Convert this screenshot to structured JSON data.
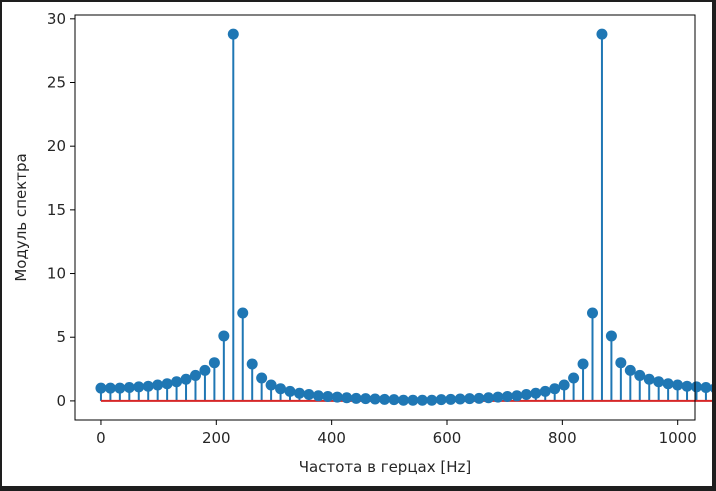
{
  "chart_data": {
    "type": "stem",
    "xlabel": "Частота в герцах [Hz]",
    "ylabel": "Модуль спектра",
    "xlim": [
      -45,
      1030
    ],
    "ylim": [
      -1.5,
      30.3
    ],
    "x_ticks": [
      "0",
      "200",
      "400",
      "600",
      "800",
      "1000"
    ],
    "y_ticks": [
      "0",
      "5",
      "10",
      "15",
      "20",
      "25",
      "30"
    ],
    "x_tick_values": [
      0,
      200,
      400,
      600,
      800,
      1000
    ],
    "y_tick_values": [
      0,
      5,
      10,
      15,
      20,
      25,
      30
    ],
    "grid": false,
    "baseline": 0,
    "x_step": 16.39,
    "values": [
      1.0,
      1.0,
      1.0,
      1.05,
      1.1,
      1.15,
      1.25,
      1.35,
      1.5,
      1.7,
      2.0,
      2.4,
      3.0,
      5.1,
      28.8,
      6.9,
      2.9,
      1.8,
      1.25,
      0.95,
      0.75,
      0.6,
      0.5,
      0.4,
      0.35,
      0.3,
      0.25,
      0.2,
      0.18,
      0.15,
      0.12,
      0.1,
      0.05,
      0.05,
      0.05,
      0.05,
      0.1,
      0.12,
      0.15,
      0.18,
      0.2,
      0.25,
      0.3,
      0.35,
      0.4,
      0.5,
      0.6,
      0.75,
      0.95,
      1.25,
      1.8,
      2.9,
      6.9,
      28.8,
      5.1,
      3.0,
      2.4,
      2.0,
      1.7,
      1.5,
      1.35,
      1.25,
      1.15,
      1.1,
      1.05,
      1.0,
      1.0,
      1.0
    ],
    "colors": {
      "stem": "#1f77b4",
      "marker": "#1f77b4",
      "baseline": "#d62728",
      "axes": "#000000",
      "text": "#262626"
    }
  }
}
